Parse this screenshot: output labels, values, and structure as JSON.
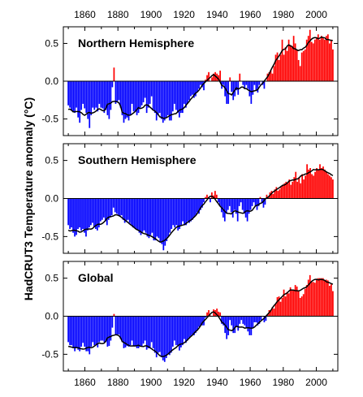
{
  "chart_data": {
    "type": "bar",
    "ylabel": "HadCRUT3 Temperature anomaly (°C)",
    "xlim": [
      1847,
      2013
    ],
    "x_ticks": [
      1860,
      1880,
      1900,
      1920,
      1940,
      1960,
      1980,
      2000
    ],
    "y_ticks": [
      0.5,
      0.0,
      -0.5
    ],
    "y_tick_labels": [
      "0.5",
      "0.0",
      "-0.5"
    ],
    "colors": {
      "positive": "#ff0000",
      "negative": "#0000ff",
      "smooth": "#000000",
      "zero_line": "#000000"
    },
    "panels": [
      {
        "title": "Northern Hemisphere",
        "ylim": [
          -0.72,
          0.72
        ],
        "series": [
          {
            "type": "bar",
            "start_year": 1850,
            "end_year": 2010,
            "values": [
              -0.32,
              -0.35,
              -0.38,
              -0.4,
              -0.42,
              -0.35,
              -0.48,
              -0.55,
              -0.38,
              -0.3,
              -0.36,
              -0.42,
              -0.5,
              -0.62,
              -0.45,
              -0.35,
              -0.38,
              -0.35,
              -0.4,
              -0.3,
              -0.35,
              -0.36,
              -0.42,
              -0.38,
              -0.45,
              -0.5,
              -0.38,
              -0.08,
              0.18,
              -0.3,
              -0.28,
              -0.25,
              -0.35,
              -0.45,
              -0.55,
              -0.5,
              -0.48,
              -0.52,
              -0.45,
              -0.3,
              -0.4,
              -0.4,
              -0.45,
              -0.42,
              -0.35,
              -0.32,
              -0.28,
              -0.22,
              -0.42,
              -0.35,
              -0.3,
              -0.2,
              -0.38,
              -0.42,
              -0.52,
              -0.45,
              -0.42,
              -0.5,
              -0.55,
              -0.52,
              -0.48,
              -0.45,
              -0.52,
              -0.52,
              -0.4,
              -0.3,
              -0.38,
              -0.42,
              -0.48,
              -0.42,
              -0.42,
              -0.3,
              -0.35,
              -0.3,
              -0.25,
              -0.2,
              -0.18,
              -0.22,
              -0.2,
              -0.14,
              -0.1,
              -0.05,
              -0.08,
              -0.12,
              0.02,
              0.08,
              0.12,
              0.0,
              0.05,
              0.1,
              0.12,
              0.1,
              0.08,
              0.14,
              -0.1,
              -0.05,
              -0.2,
              -0.3,
              -0.3,
              0.05,
              -0.14,
              -0.25,
              -0.2,
              -0.12,
              -0.18,
              0.1,
              0.0,
              -0.05,
              -0.1,
              -0.05,
              -0.1,
              -0.2,
              -0.3,
              -0.18,
              -0.05,
              -0.12,
              -0.15,
              -0.05,
              0.0,
              -0.05,
              -0.1,
              0.0,
              0.1,
              0.12,
              0.15,
              0.1,
              0.2,
              0.35,
              0.38,
              0.28,
              0.35,
              0.55,
              0.35,
              0.45,
              0.4,
              0.55,
              0.48,
              0.45,
              0.6,
              0.5,
              0.42,
              0.28,
              0.2,
              0.38,
              0.4,
              0.42,
              0.55,
              0.6,
              0.68,
              0.52,
              0.5,
              0.55,
              0.58,
              0.62,
              0.55,
              0.6,
              0.58,
              0.55,
              0.6,
              0.62,
              0.5,
              0.55,
              0.42
            ]
          },
          {
            "type": "line",
            "smoothing": "running mean (9-yr)"
          }
        ]
      },
      {
        "title": "Southern Hemisphere",
        "ylim": [
          -0.72,
          0.72
        ],
        "series": [
          {
            "type": "bar",
            "start_year": 1850,
            "end_year": 2010,
            "values": [
              -0.35,
              -0.4,
              -0.38,
              -0.45,
              -0.5,
              -0.48,
              -0.4,
              -0.38,
              -0.42,
              -0.4,
              -0.45,
              -0.5,
              -0.42,
              -0.38,
              -0.35,
              -0.32,
              -0.38,
              -0.4,
              -0.42,
              -0.38,
              -0.3,
              -0.28,
              -0.25,
              -0.3,
              -0.35,
              -0.28,
              -0.25,
              -0.22,
              -0.12,
              -0.18,
              -0.2,
              -0.22,
              -0.24,
              -0.22,
              -0.28,
              -0.32,
              -0.3,
              -0.28,
              -0.32,
              -0.35,
              -0.38,
              -0.38,
              -0.4,
              -0.42,
              -0.45,
              -0.48,
              -0.44,
              -0.42,
              -0.45,
              -0.5,
              -0.52,
              -0.48,
              -0.45,
              -0.55,
              -0.55,
              -0.5,
              -0.52,
              -0.58,
              -0.6,
              -0.68,
              -0.62,
              -0.56,
              -0.5,
              -0.45,
              -0.4,
              -0.35,
              -0.38,
              -0.35,
              -0.42,
              -0.4,
              -0.35,
              -0.3,
              -0.35,
              -0.35,
              -0.3,
              -0.32,
              -0.3,
              -0.28,
              -0.25,
              -0.22,
              -0.18,
              -0.2,
              -0.15,
              -0.12,
              -0.05,
              0.02,
              0.05,
              0.02,
              -0.05,
              0.08,
              0.04,
              0.1,
              0.05,
              -0.05,
              -0.1,
              -0.18,
              -0.25,
              -0.3,
              -0.2,
              -0.15,
              -0.1,
              -0.18,
              -0.25,
              -0.15,
              -0.2,
              -0.3,
              -0.1,
              -0.05,
              -0.15,
              -0.2,
              -0.25,
              -0.3,
              -0.2,
              -0.15,
              -0.1,
              -0.05,
              -0.1,
              -0.15,
              -0.1,
              0.02,
              -0.05,
              -0.12,
              -0.08,
              0.05,
              0.02,
              0.08,
              0.1,
              0.06,
              0.12,
              0.15,
              0.1,
              0.12,
              0.15,
              0.18,
              0.2,
              0.22,
              0.2,
              0.25,
              0.18,
              0.22,
              0.28,
              0.35,
              0.22,
              0.28,
              0.2,
              0.32,
              0.25,
              0.3,
              0.45,
              0.38,
              0.4,
              0.32,
              0.3,
              0.35,
              0.4,
              0.38,
              0.45,
              0.4,
              0.42,
              0.38,
              0.35,
              0.32,
              0.3,
              0.28,
              0.25
            ]
          },
          {
            "type": "line",
            "smoothing": "running mean (9-yr)"
          }
        ]
      },
      {
        "title": "Global",
        "ylim": [
          -0.72,
          0.72
        ],
        "series": [
          {
            "type": "bar",
            "start_year": 1850,
            "end_year": 2010,
            "values": [
              -0.34,
              -0.38,
              -0.38,
              -0.42,
              -0.46,
              -0.42,
              -0.44,
              -0.46,
              -0.4,
              -0.35,
              -0.4,
              -0.46,
              -0.46,
              -0.5,
              -0.4,
              -0.34,
              -0.38,
              -0.38,
              -0.41,
              -0.34,
              -0.32,
              -0.32,
              -0.34,
              -0.34,
              -0.4,
              -0.39,
              -0.32,
              -0.15,
              0.03,
              -0.24,
              -0.24,
              -0.24,
              -0.3,
              -0.34,
              -0.42,
              -0.41,
              -0.39,
              -0.4,
              -0.38,
              -0.32,
              -0.39,
              -0.39,
              -0.42,
              -0.42,
              -0.4,
              -0.4,
              -0.36,
              -0.32,
              -0.44,
              -0.42,
              -0.41,
              -0.34,
              -0.42,
              -0.48,
              -0.54,
              -0.48,
              -0.47,
              -0.54,
              -0.58,
              -0.6,
              -0.55,
              -0.5,
              -0.51,
              -0.48,
              -0.4,
              -0.32,
              -0.38,
              -0.38,
              -0.45,
              -0.41,
              -0.38,
              -0.3,
              -0.35,
              -0.32,
              -0.28,
              -0.26,
              -0.24,
              -0.25,
              -0.22,
              -0.18,
              -0.14,
              -0.12,
              -0.12,
              -0.12,
              -0.02,
              0.05,
              0.08,
              0.01,
              0.0,
              0.09,
              0.08,
              0.1,
              0.06,
              0.05,
              -0.1,
              -0.12,
              -0.22,
              -0.3,
              -0.25,
              -0.05,
              -0.12,
              -0.22,
              -0.22,
              -0.14,
              -0.19,
              -0.1,
              -0.05,
              -0.1,
              -0.12,
              -0.15,
              -0.2,
              -0.25,
              -0.25,
              -0.16,
              -0.08,
              -0.08,
              -0.12,
              -0.1,
              -0.05,
              0.0,
              -0.08,
              -0.06,
              0.02,
              0.08,
              0.08,
              0.12,
              0.1,
              0.16,
              0.25,
              0.26,
              0.19,
              0.24,
              0.35,
              0.26,
              0.32,
              0.3,
              0.38,
              0.35,
              0.35,
              0.41,
              0.39,
              0.34,
              0.24,
              0.26,
              0.29,
              0.36,
              0.41,
              0.48,
              0.54,
              0.45,
              0.45,
              0.44,
              0.49,
              0.5,
              0.5,
              0.5,
              0.5,
              0.47,
              0.48,
              0.47,
              0.4,
              0.42,
              0.33
            ]
          },
          {
            "type": "line",
            "smoothing": "running mean (9-yr)"
          }
        ]
      }
    ]
  }
}
